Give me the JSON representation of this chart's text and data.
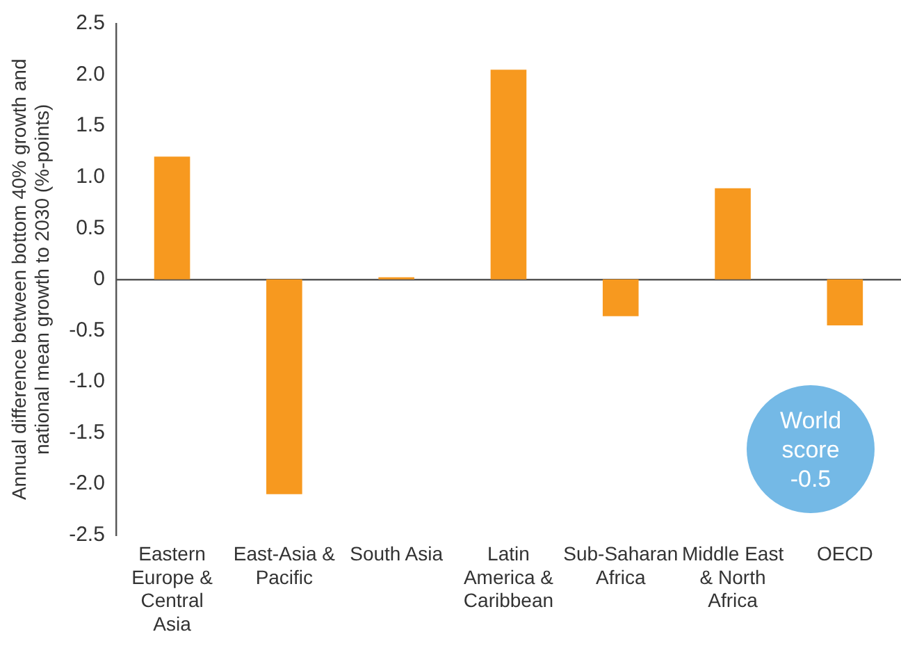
{
  "chart_data": {
    "type": "bar",
    "ylabel": "Annual difference between bottom 40% growth and national mean growth to 2030 (%-points)",
    "categories": [
      "Eastern Europe & Central Asia",
      "East-Asia & Pacific",
      "South Asia",
      "Latin America & Caribbean",
      "Sub-Saharan Africa",
      "Middle East & North Africa",
      "OECD"
    ],
    "values": [
      1.2,
      -2.1,
      0.02,
      2.05,
      -0.36,
      0.89,
      -0.45
    ],
    "color": "#f7991f",
    "ylim": [
      -2.5,
      2.5
    ],
    "yticks": [
      {
        "value": -2.5,
        "label": "-2.5"
      },
      {
        "value": -2,
        "label": "-2.0"
      },
      {
        "value": -1.5,
        "label": "-1.5"
      },
      {
        "value": -1,
        "label": "-1.0"
      },
      {
        "value": -0.5,
        "label": "-0.5"
      },
      0,
      {
        "value": 0.5,
        "label": "0.5"
      },
      {
        "value": 1,
        "label": "1.0"
      },
      {
        "value": 1.5,
        "label": "1.5"
      },
      {
        "value": 2,
        "label": "2.0"
      },
      {
        "value": 2.5,
        "label": "2.5"
      }
    ],
    "legend": false,
    "annotations": [
      "World score -0.5"
    ]
  }
}
